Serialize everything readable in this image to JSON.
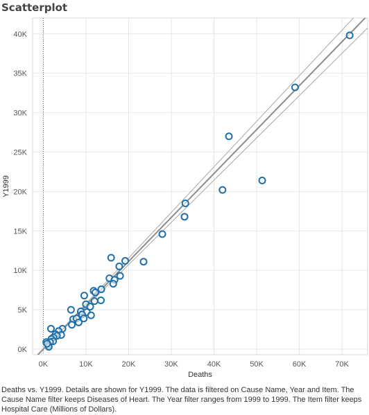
{
  "title": "Scatterplot",
  "caption": "Deaths vs. Y1999.  Details are shown for Y1999. The data is filtered on Cause Name, Year and Item. The Cause Name filter keeps Diseases of Heart. The Year filter ranges from 1999 to 1999. The Item filter keeps Hospital Care (Millions of Dollars).",
  "colors": {
    "point": "#1f6fa8",
    "trend": "#8c8c8c",
    "band": "#a6a6a6",
    "grid": "#e6e6e6"
  },
  "chart_data": {
    "type": "scatter",
    "xlabel": "Deaths",
    "ylabel": "Y1999",
    "xlim": [
      -2500,
      76000
    ],
    "ylim": [
      -700,
      42000
    ],
    "xticks": [
      0,
      10000,
      20000,
      30000,
      40000,
      50000,
      60000,
      70000
    ],
    "xtick_labels": [
      "0K",
      "10K",
      "20K",
      "30K",
      "40K",
      "50K",
      "60K",
      "70K"
    ],
    "yticks": [
      0,
      5000,
      10000,
      15000,
      20000,
      25000,
      30000,
      35000,
      40000
    ],
    "ytick_labels": [
      "0K",
      "5K",
      "10K",
      "15K",
      "20K",
      "25K",
      "30K",
      "35K",
      "40K"
    ],
    "grid": true,
    "trend_line": {
      "slope": 0.557,
      "intercept": 0
    },
    "confidence_band": {
      "upper_slope": 0.578,
      "lower_slope": 0.536
    },
    "points": [
      {
        "x": 71800,
        "y": 39800
      },
      {
        "x": 59000,
        "y": 33200
      },
      {
        "x": 43500,
        "y": 27000
      },
      {
        "x": 51300,
        "y": 21400
      },
      {
        "x": 42000,
        "y": 20200
      },
      {
        "x": 33300,
        "y": 18500
      },
      {
        "x": 33100,
        "y": 16800
      },
      {
        "x": 27900,
        "y": 14600
      },
      {
        "x": 15900,
        "y": 11600
      },
      {
        "x": 19200,
        "y": 11200
      },
      {
        "x": 23500,
        "y": 11100
      },
      {
        "x": 17800,
        "y": 10500
      },
      {
        "x": 15500,
        "y": 9000
      },
      {
        "x": 16700,
        "y": 8800
      },
      {
        "x": 18000,
        "y": 9300
      },
      {
        "x": 16400,
        "y": 8300
      },
      {
        "x": 11800,
        "y": 7400
      },
      {
        "x": 12200,
        "y": 7200
      },
      {
        "x": 13600,
        "y": 7600
      },
      {
        "x": 9600,
        "y": 6800
      },
      {
        "x": 12000,
        "y": 6100
      },
      {
        "x": 13500,
        "y": 6200
      },
      {
        "x": 10000,
        "y": 5700
      },
      {
        "x": 11000,
        "y": 5400
      },
      {
        "x": 6500,
        "y": 5000
      },
      {
        "x": 8800,
        "y": 4800
      },
      {
        "x": 10200,
        "y": 4700
      },
      {
        "x": 11200,
        "y": 4300
      },
      {
        "x": 9100,
        "y": 4400
      },
      {
        "x": 7000,
        "y": 3800
      },
      {
        "x": 7800,
        "y": 3900
      },
      {
        "x": 8300,
        "y": 3400
      },
      {
        "x": 9500,
        "y": 3900
      },
      {
        "x": 6700,
        "y": 3100
      },
      {
        "x": 1800,
        "y": 2600
      },
      {
        "x": 4500,
        "y": 2600
      },
      {
        "x": 3600,
        "y": 2300
      },
      {
        "x": 2900,
        "y": 1900
      },
      {
        "x": 4200,
        "y": 1800
      },
      {
        "x": 3200,
        "y": 1700
      },
      {
        "x": 2400,
        "y": 1500
      },
      {
        "x": 1900,
        "y": 1300
      },
      {
        "x": 2300,
        "y": 1000
      },
      {
        "x": 1600,
        "y": 900
      },
      {
        "x": 700,
        "y": 900
      },
      {
        "x": 1200,
        "y": 500
      },
      {
        "x": 1300,
        "y": 300
      },
      {
        "x": 900,
        "y": 700
      }
    ]
  }
}
